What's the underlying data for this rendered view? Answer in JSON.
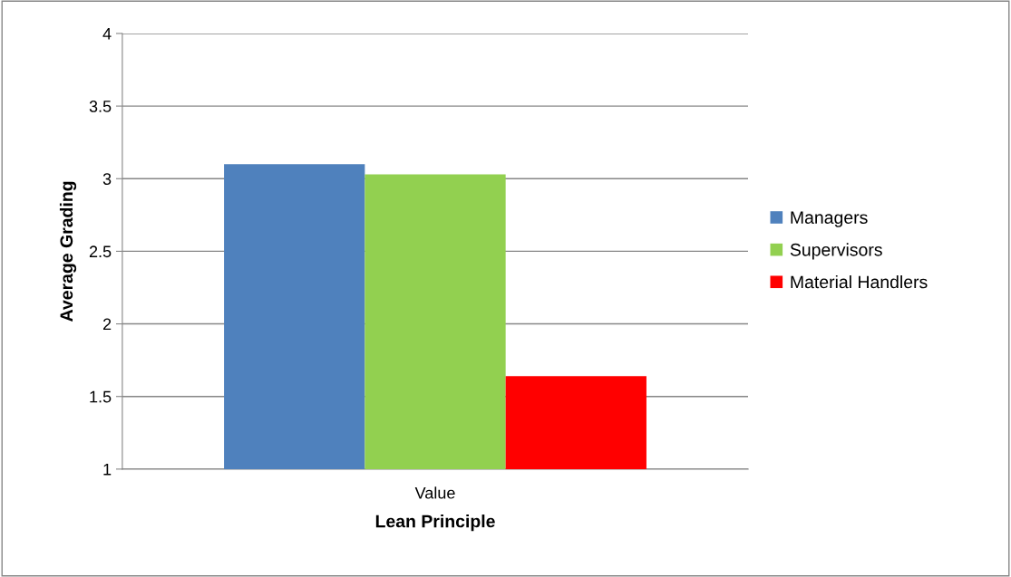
{
  "chart_data": {
    "type": "bar",
    "xlabel": "Lean Principle",
    "ylabel": "Average Grading",
    "categories": [
      "Value"
    ],
    "series": [
      {
        "name": "Managers",
        "color": "#4f81bd",
        "values": [
          3.1
        ]
      },
      {
        "name": "Supervisors",
        "color": "#92d050",
        "values": [
          3.03
        ]
      },
      {
        "name": "Material Handlers",
        "color": "#ff0000",
        "values": [
          1.64
        ]
      }
    ],
    "ylim": [
      1,
      4
    ],
    "yticks": [
      1,
      1.5,
      2,
      2.5,
      3,
      3.5,
      4
    ],
    "grid": "y",
    "legend": "right"
  }
}
